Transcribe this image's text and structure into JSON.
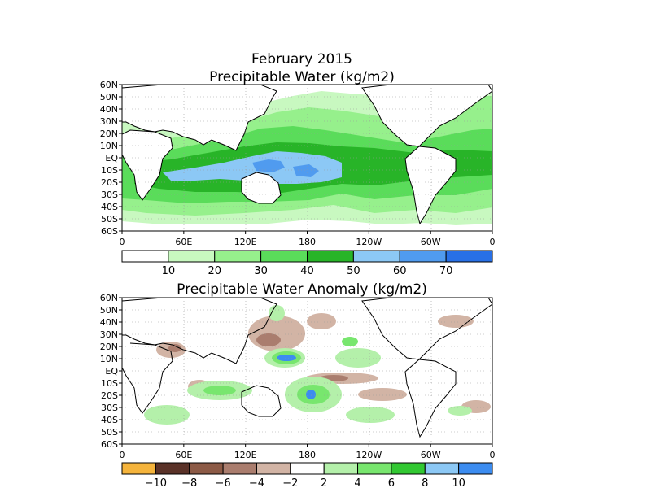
{
  "header": {
    "title_line1": "February 2015",
    "title_line2": "Precipitable Water (kg/m2)"
  },
  "panel2": {
    "title": "Precipitable Water Anomaly (kg/m2)"
  },
  "axes": {
    "lat_labels": [
      "60N",
      "50N",
      "40N",
      "30N",
      "20N",
      "10N",
      "EQ",
      "10S",
      "20S",
      "30S",
      "40S",
      "50S",
      "60S"
    ],
    "lon_labels": [
      "0",
      "60E",
      "120E",
      "180",
      "120W",
      "60W",
      "0"
    ]
  },
  "colorbar1": {
    "labels": [
      "10",
      "20",
      "30",
      "40",
      "50",
      "60",
      "70"
    ],
    "colors": [
      "#ffffff",
      "#c8f8c0",
      "#96f08c",
      "#5adc5a",
      "#28b428",
      "#8cc8f5",
      "#509bef",
      "#2870e6"
    ]
  },
  "colorbar2": {
    "labels": [
      "−10",
      "−8",
      "−6",
      "−4",
      "−2",
      "2",
      "4",
      "6",
      "8",
      "10"
    ],
    "colors": [
      "#f5b43c",
      "#5a3228",
      "#8c5a46",
      "#aa7d6e",
      "#d2b4a5",
      "#ffffff",
      "#b4f0aa",
      "#78e66e",
      "#32c832",
      "#8cc8f5",
      "#3c8cf0"
    ]
  },
  "chart_data": [
    {
      "type": "heatmap",
      "title": "February 2015 Precipitable Water (kg/m2)",
      "lat_range": [
        -60,
        60
      ],
      "lon_range": [
        0,
        360
      ],
      "levels": [
        10,
        20,
        30,
        40,
        50,
        60,
        70
      ]
    },
    {
      "type": "heatmap",
      "title": "Precipitable Water Anomaly (kg/m2)",
      "lat_range": [
        -60,
        60
      ],
      "lon_range": [
        0,
        360
      ],
      "levels": [
        -10,
        -8,
        -6,
        -4,
        -2,
        2,
        4,
        6,
        8,
        10
      ]
    }
  ]
}
